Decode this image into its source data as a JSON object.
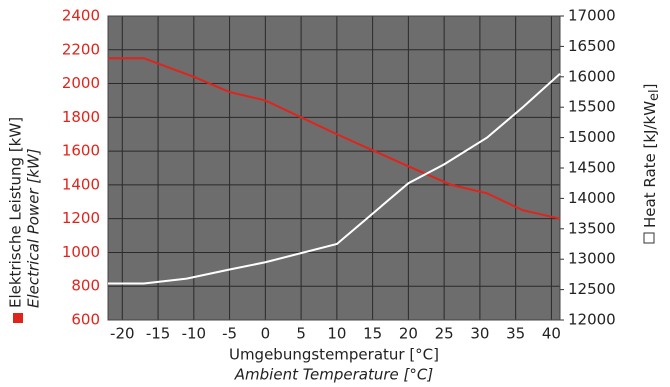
{
  "chart_data": {
    "type": "line",
    "x_label": "Umgebungstemperatur [°C]",
    "x_label_en": "Ambient Temperature [°C]",
    "y_label": "Elektrische Leistung [kW]",
    "y_label_en": "Electrical Power [kW]",
    "y2_label": "Heat Rate [kJ/kW",
    "y2_label_sub": "el",
    "y2_label_end": "]",
    "xlim": [
      -22,
      41.2
    ],
    "xticks": [
      -20,
      -15,
      -10,
      -5,
      0,
      5,
      10,
      15,
      20,
      25,
      30,
      35,
      40
    ],
    "ylim": [
      600,
      2400
    ],
    "yticks": [
      600,
      800,
      1000,
      1200,
      1400,
      1600,
      1800,
      2000,
      2200,
      2400
    ],
    "y2lim": [
      12000,
      17000
    ],
    "y2ticks": [
      12000,
      12500,
      13000,
      13500,
      14000,
      14500,
      15000,
      15500,
      16000,
      16500,
      17000
    ],
    "grid": true,
    "background": "#6d6d6d",
    "series": [
      {
        "color": "#e0241b",
        "axis": "y",
        "x": [
          -22,
          -17,
          -10,
          -5,
          0,
          10,
          20,
          26,
          31,
          36,
          41.2
        ],
        "values": [
          2150,
          2150,
          2040,
          1950,
          1900,
          1700,
          1510,
          1400,
          1350,
          1250,
          1200
        ]
      },
      {
        "color": "#ffffff",
        "axis": "y2",
        "x": [
          -22,
          -17,
          -11,
          -5,
          0,
          10,
          20,
          25,
          31,
          36,
          41.2
        ],
        "values": [
          12600,
          12600,
          12680,
          12830,
          12950,
          13250,
          14250,
          14560,
          15000,
          15500,
          16050
        ]
      }
    ]
  }
}
